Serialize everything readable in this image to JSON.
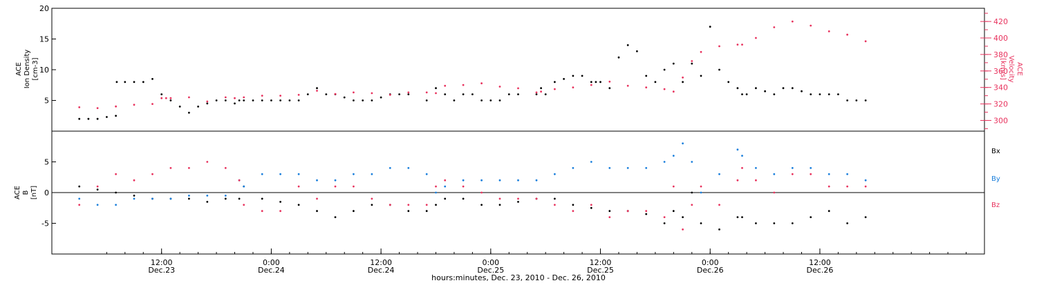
{
  "colors": {
    "black": "#000000",
    "pink": "#e8335e",
    "blue": "#1a7fdc"
  },
  "chart_data": [
    {
      "type": "scatter",
      "panel": "top",
      "left_axis_label": [
        "ACE",
        "Ion Density",
        "[cm-3]"
      ],
      "right_axis_label": [
        "ACE",
        "Velocity",
        "[km/s]"
      ],
      "left_ylim": [
        0,
        20
      ],
      "left_ticks": [
        "5",
        "10",
        "15",
        "20"
      ],
      "right_ylim": [
        287,
        436
      ],
      "right_ticks": [
        "300",
        "320",
        "340",
        "360",
        "380",
        "400",
        "420"
      ],
      "series": [
        {
          "axis": "left",
          "color": "#000000",
          "x": [
            0,
            1,
            2,
            3,
            4,
            4.1,
            5,
            6,
            7,
            8,
            9,
            10,
            11,
            12,
            13,
            14,
            15,
            16,
            17,
            17.5,
            18,
            19,
            20,
            21,
            22,
            23,
            24,
            25,
            26,
            27,
            28,
            29,
            30,
            31,
            32,
            33,
            34,
            35,
            36,
            38,
            39,
            40,
            41,
            42,
            43,
            44,
            45,
            46,
            47,
            48,
            50,
            50.5,
            51,
            52,
            53,
            54,
            55,
            56,
            56.5,
            57,
            58,
            59,
            60,
            61,
            62,
            63,
            64,
            65,
            66,
            67,
            68,
            69,
            70,
            71,
            72,
            72.5,
            73,
            74,
            75,
            76,
            77,
            78,
            79,
            80,
            81,
            82,
            83,
            84,
            85,
            86
          ],
          "y": [
            2,
            2,
            2,
            2.3,
            2.5,
            8,
            8,
            8,
            8,
            8.5,
            6,
            5,
            4,
            3,
            4,
            4.5,
            5,
            5,
            4.5,
            5,
            5,
            5,
            5,
            5,
            5,
            5,
            5,
            6,
            7,
            6,
            6,
            5.5,
            5,
            5,
            5,
            5.5,
            6,
            6,
            6,
            5,
            7,
            6,
            5,
            6,
            6,
            5,
            5,
            5,
            6,
            6,
            6,
            7,
            6,
            8,
            8.5,
            9,
            9,
            8,
            8,
            8,
            7,
            12,
            14,
            13,
            9,
            8,
            10,
            11,
            8,
            11,
            9,
            17,
            10,
            8,
            7,
            6,
            6,
            7,
            6.5,
            6,
            7,
            7,
            6.5,
            6,
            6,
            6,
            6,
            5,
            5,
            5
          ]
        },
        {
          "axis": "right",
          "color": "#e8335e",
          "x": [
            0,
            2,
            4,
            6,
            8,
            9,
            9.5,
            10,
            12,
            14,
            16,
            17,
            18,
            20,
            22,
            24,
            26,
            28,
            30,
            32,
            34,
            36,
            38,
            39,
            40,
            42,
            44,
            46,
            48,
            50,
            50.5,
            52,
            54,
            56,
            58,
            60,
            62,
            64,
            65,
            66,
            67,
            68,
            70,
            72,
            72.5,
            74,
            76,
            78,
            80,
            82,
            84,
            86
          ],
          "y": [
            316,
            315,
            317,
            319,
            320,
            327,
            327,
            327,
            328,
            323,
            328,
            327,
            328,
            330,
            330,
            331,
            336,
            332,
            334,
            333,
            331,
            334,
            334,
            333,
            342,
            343,
            345,
            341,
            339,
            334,
            335,
            338,
            340,
            343,
            347,
            342,
            340,
            338,
            335,
            352,
            372,
            383,
            390,
            392,
            392,
            400,
            413,
            420,
            415,
            408,
            404,
            396
          ]
        }
      ]
    },
    {
      "type": "scatter",
      "panel": "bottom",
      "left_axis_label": [
        "ACE",
        "B",
        "[nT]"
      ],
      "ylim": [
        -10,
        10
      ],
      "ticks": [
        "-5",
        "0",
        "5"
      ],
      "legend": [
        "Bx",
        "By",
        "Bz"
      ],
      "x_tick_labels": [
        [
          "12:00",
          "Dec.23"
        ],
        [
          "0:00",
          "Dec.24"
        ],
        [
          "12:00",
          "Dec.24"
        ],
        [
          "0:00",
          "Dec.25"
        ],
        [
          "12:00",
          "Dec.25"
        ],
        [
          "0:00",
          "Dec.26"
        ],
        [
          "12:00",
          "Dec.26"
        ]
      ],
      "xlabel": "hours:minutes, Dec. 23, 2010 - Dec. 26, 2010",
      "series": [
        {
          "name": "Bx",
          "color": "#000000",
          "x": [
            0,
            2,
            4,
            6,
            8,
            10,
            12,
            14,
            16,
            18,
            17.5,
            20,
            22,
            24,
            26,
            28,
            30,
            32,
            34,
            36,
            38,
            39,
            40,
            42,
            44,
            46,
            48,
            50,
            52,
            54,
            56,
            58,
            60,
            62,
            64,
            65,
            66,
            67,
            68,
            70,
            72,
            72.5,
            74,
            76,
            78,
            80,
            82,
            84,
            86
          ],
          "y": [
            1,
            0.5,
            0,
            -0.5,
            -1,
            -1,
            -1,
            -1.5,
            -1,
            1,
            -1,
            -1,
            -1.5,
            -2,
            -3,
            -4,
            -3,
            -2,
            -2,
            -3,
            -3,
            -2,
            -1,
            -1,
            -2,
            -2,
            -1.5,
            -1,
            -1,
            -2,
            -2.5,
            -3,
            -3,
            -3.5,
            -5,
            -3,
            -4,
            0,
            -5,
            -6,
            -4,
            -4,
            -5,
            -5,
            -5,
            -4,
            -3,
            -5,
            -4
          ]
        },
        {
          "name": "By",
          "color": "#1a7fdc",
          "x": [
            0,
            2,
            4,
            6,
            8,
            10,
            12,
            14,
            16,
            17.5,
            18,
            20,
            22,
            24,
            26,
            28,
            30,
            32,
            34,
            36,
            38,
            39,
            40,
            42,
            44,
            46,
            48,
            50,
            52,
            54,
            56,
            58,
            60,
            62,
            64,
            65,
            66,
            67,
            68,
            70,
            72,
            72.5,
            74,
            76,
            78,
            80,
            82,
            84,
            86
          ],
          "y": [
            -1,
            -2,
            -2,
            -1,
            -1,
            -1,
            -0.5,
            -0.5,
            -0.5,
            2,
            1,
            3,
            3,
            3,
            2,
            2,
            3,
            3,
            4,
            4,
            3,
            0,
            1,
            2,
            2,
            2,
            2,
            2,
            3,
            4,
            5,
            4,
            4,
            4,
            5,
            6,
            8,
            5,
            0,
            3,
            7,
            6,
            4,
            3,
            4,
            4,
            3,
            3,
            2
          ]
        },
        {
          "name": "Bz",
          "color": "#e8335e",
          "x": [
            0,
            2,
            4,
            6,
            8,
            10,
            12,
            14,
            16,
            17.5,
            18,
            20,
            22,
            24,
            26,
            28,
            30,
            32,
            34,
            36,
            38,
            39,
            40,
            42,
            44,
            46,
            48,
            50,
            52,
            54,
            56,
            58,
            60,
            62,
            64,
            65,
            66,
            67,
            68,
            70,
            72,
            72.5,
            74,
            76,
            78,
            80,
            82,
            84,
            86
          ],
          "y": [
            -2,
            1,
            3,
            2,
            3,
            4,
            4,
            5,
            4,
            2,
            -2,
            -3,
            -3,
            1,
            -1,
            1,
            1,
            -1,
            -2,
            -2,
            -2,
            1,
            2,
            1,
            0,
            -1,
            -1,
            -1,
            -2,
            -3,
            -2,
            -4,
            -3,
            -3,
            -4,
            1,
            -6,
            -2,
            1,
            -2,
            2,
            4,
            2,
            0,
            3,
            3,
            1,
            1,
            1
          ]
        }
      ]
    }
  ]
}
